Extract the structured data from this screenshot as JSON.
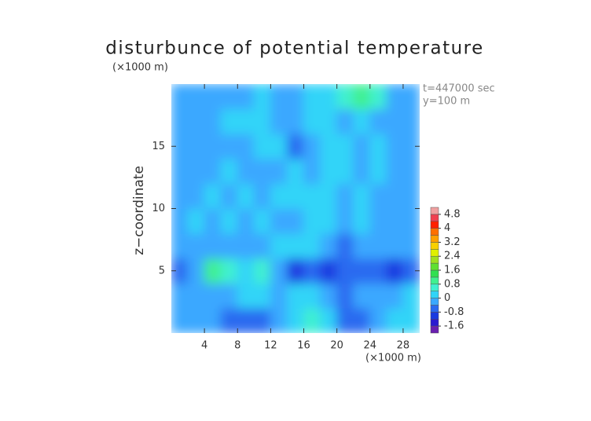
{
  "chart_data": {
    "type": "contour",
    "title": "disturbunce of potential temperature",
    "y_unit_label": "(×1000 m)",
    "x_unit_label": "(×1000 m)",
    "y_label": "z−coordinate",
    "annotations": [
      "t=447000 sec",
      "y=100 m"
    ],
    "x": [
      1,
      3,
      5,
      7,
      9,
      11,
      13,
      15,
      17,
      19,
      21,
      23,
      25,
      27,
      29
    ],
    "y": [
      1,
      3,
      5,
      7,
      9,
      11,
      13,
      15,
      17,
      19
    ],
    "z": [
      [
        -0.2,
        -0.1,
        -0.3,
        -0.6,
        -0.7,
        -0.5,
        -0.2,
        0.1,
        0.5,
        0.1,
        -0.6,
        -0.5,
        -0.2,
        0.3,
        0.2
      ],
      [
        -0.2,
        -0.3,
        -0.2,
        -0.1,
        0.2,
        0.3,
        -0.2,
        0.1,
        0.3,
        -0.3,
        -0.6,
        -0.3,
        -0.4,
        -0.2,
        0.1
      ],
      [
        -0.5,
        -0.3,
        0.8,
        0.6,
        0.3,
        0.5,
        -0.4,
        -0.9,
        -0.8,
        -1.0,
        -0.8,
        -0.6,
        -0.7,
        -1.0,
        -0.5
      ],
      [
        -0.4,
        -0.2,
        -0.1,
        -0.2,
        -0.3,
        -0.1,
        0.0,
        0.1,
        0.2,
        -0.3,
        -0.5,
        -0.3,
        -0.2,
        -0.1,
        -0.2
      ],
      [
        -0.2,
        0.1,
        -0.2,
        0.2,
        -0.1,
        0.2,
        -0.2,
        -0.1,
        0.1,
        0.2,
        -0.1,
        0.2,
        -0.2,
        -0.1,
        -0.2
      ],
      [
        -0.3,
        -0.1,
        0.2,
        -0.2,
        0.1,
        -0.3,
        0.2,
        0.1,
        0.2,
        0.3,
        -0.2,
        0.1,
        -0.2,
        -0.1,
        -0.3
      ],
      [
        -0.2,
        -0.4,
        -0.1,
        0.2,
        -0.1,
        -0.2,
        -0.1,
        0.1,
        -0.2,
        0.3,
        0.1,
        -0.2,
        0.1,
        -0.3,
        -0.2
      ],
      [
        -0.3,
        -0.2,
        -0.4,
        -0.1,
        -0.2,
        0.1,
        0.2,
        -0.5,
        -0.3,
        0.2,
        0.2,
        -0.2,
        0.1,
        -0.2,
        -0.3
      ],
      [
        -0.2,
        -0.1,
        -0.2,
        0.1,
        0.2,
        0.1,
        -0.1,
        -0.2,
        0.2,
        0.1,
        -0.1,
        0.2,
        -0.1,
        -0.2,
        -0.1
      ],
      [
        -0.2,
        -0.3,
        -0.1,
        -0.2,
        -0.1,
        0.2,
        -0.1,
        -0.2,
        0.1,
        0.3,
        0.7,
        0.9,
        0.4,
        -0.1,
        -0.3
      ]
    ],
    "xlim": [
      0,
      30
    ],
    "ylim": [
      0,
      20
    ],
    "xticks": [
      4,
      8,
      12,
      16,
      20,
      24,
      28
    ],
    "yticks": [
      5,
      10,
      15
    ],
    "colorbar": {
      "levels": [
        -2.0,
        -1.6,
        -1.2,
        -0.8,
        -0.4,
        0,
        0.4,
        0.8,
        1.2,
        1.6,
        2.0,
        2.4,
        2.8,
        3.2,
        3.6,
        4.0,
        4.4,
        4.8,
        5.2
      ],
      "colors": [
        "#6a1fb0",
        "#2a1ad0",
        "#1a3ae0",
        "#2a6af0",
        "#3aa8ff",
        "#30d4f8",
        "#40f0d0",
        "#40f090",
        "#30e050",
        "#60e030",
        "#a0e020",
        "#e0f000",
        "#f8d000",
        "#ffa000",
        "#ff7000",
        "#ff2000",
        "#f04050",
        "#f0a0a0"
      ],
      "ticks": [
        -1.6,
        -0.8,
        0,
        0.8,
        1.6,
        2.4,
        3.2,
        4,
        4.8
      ]
    }
  }
}
